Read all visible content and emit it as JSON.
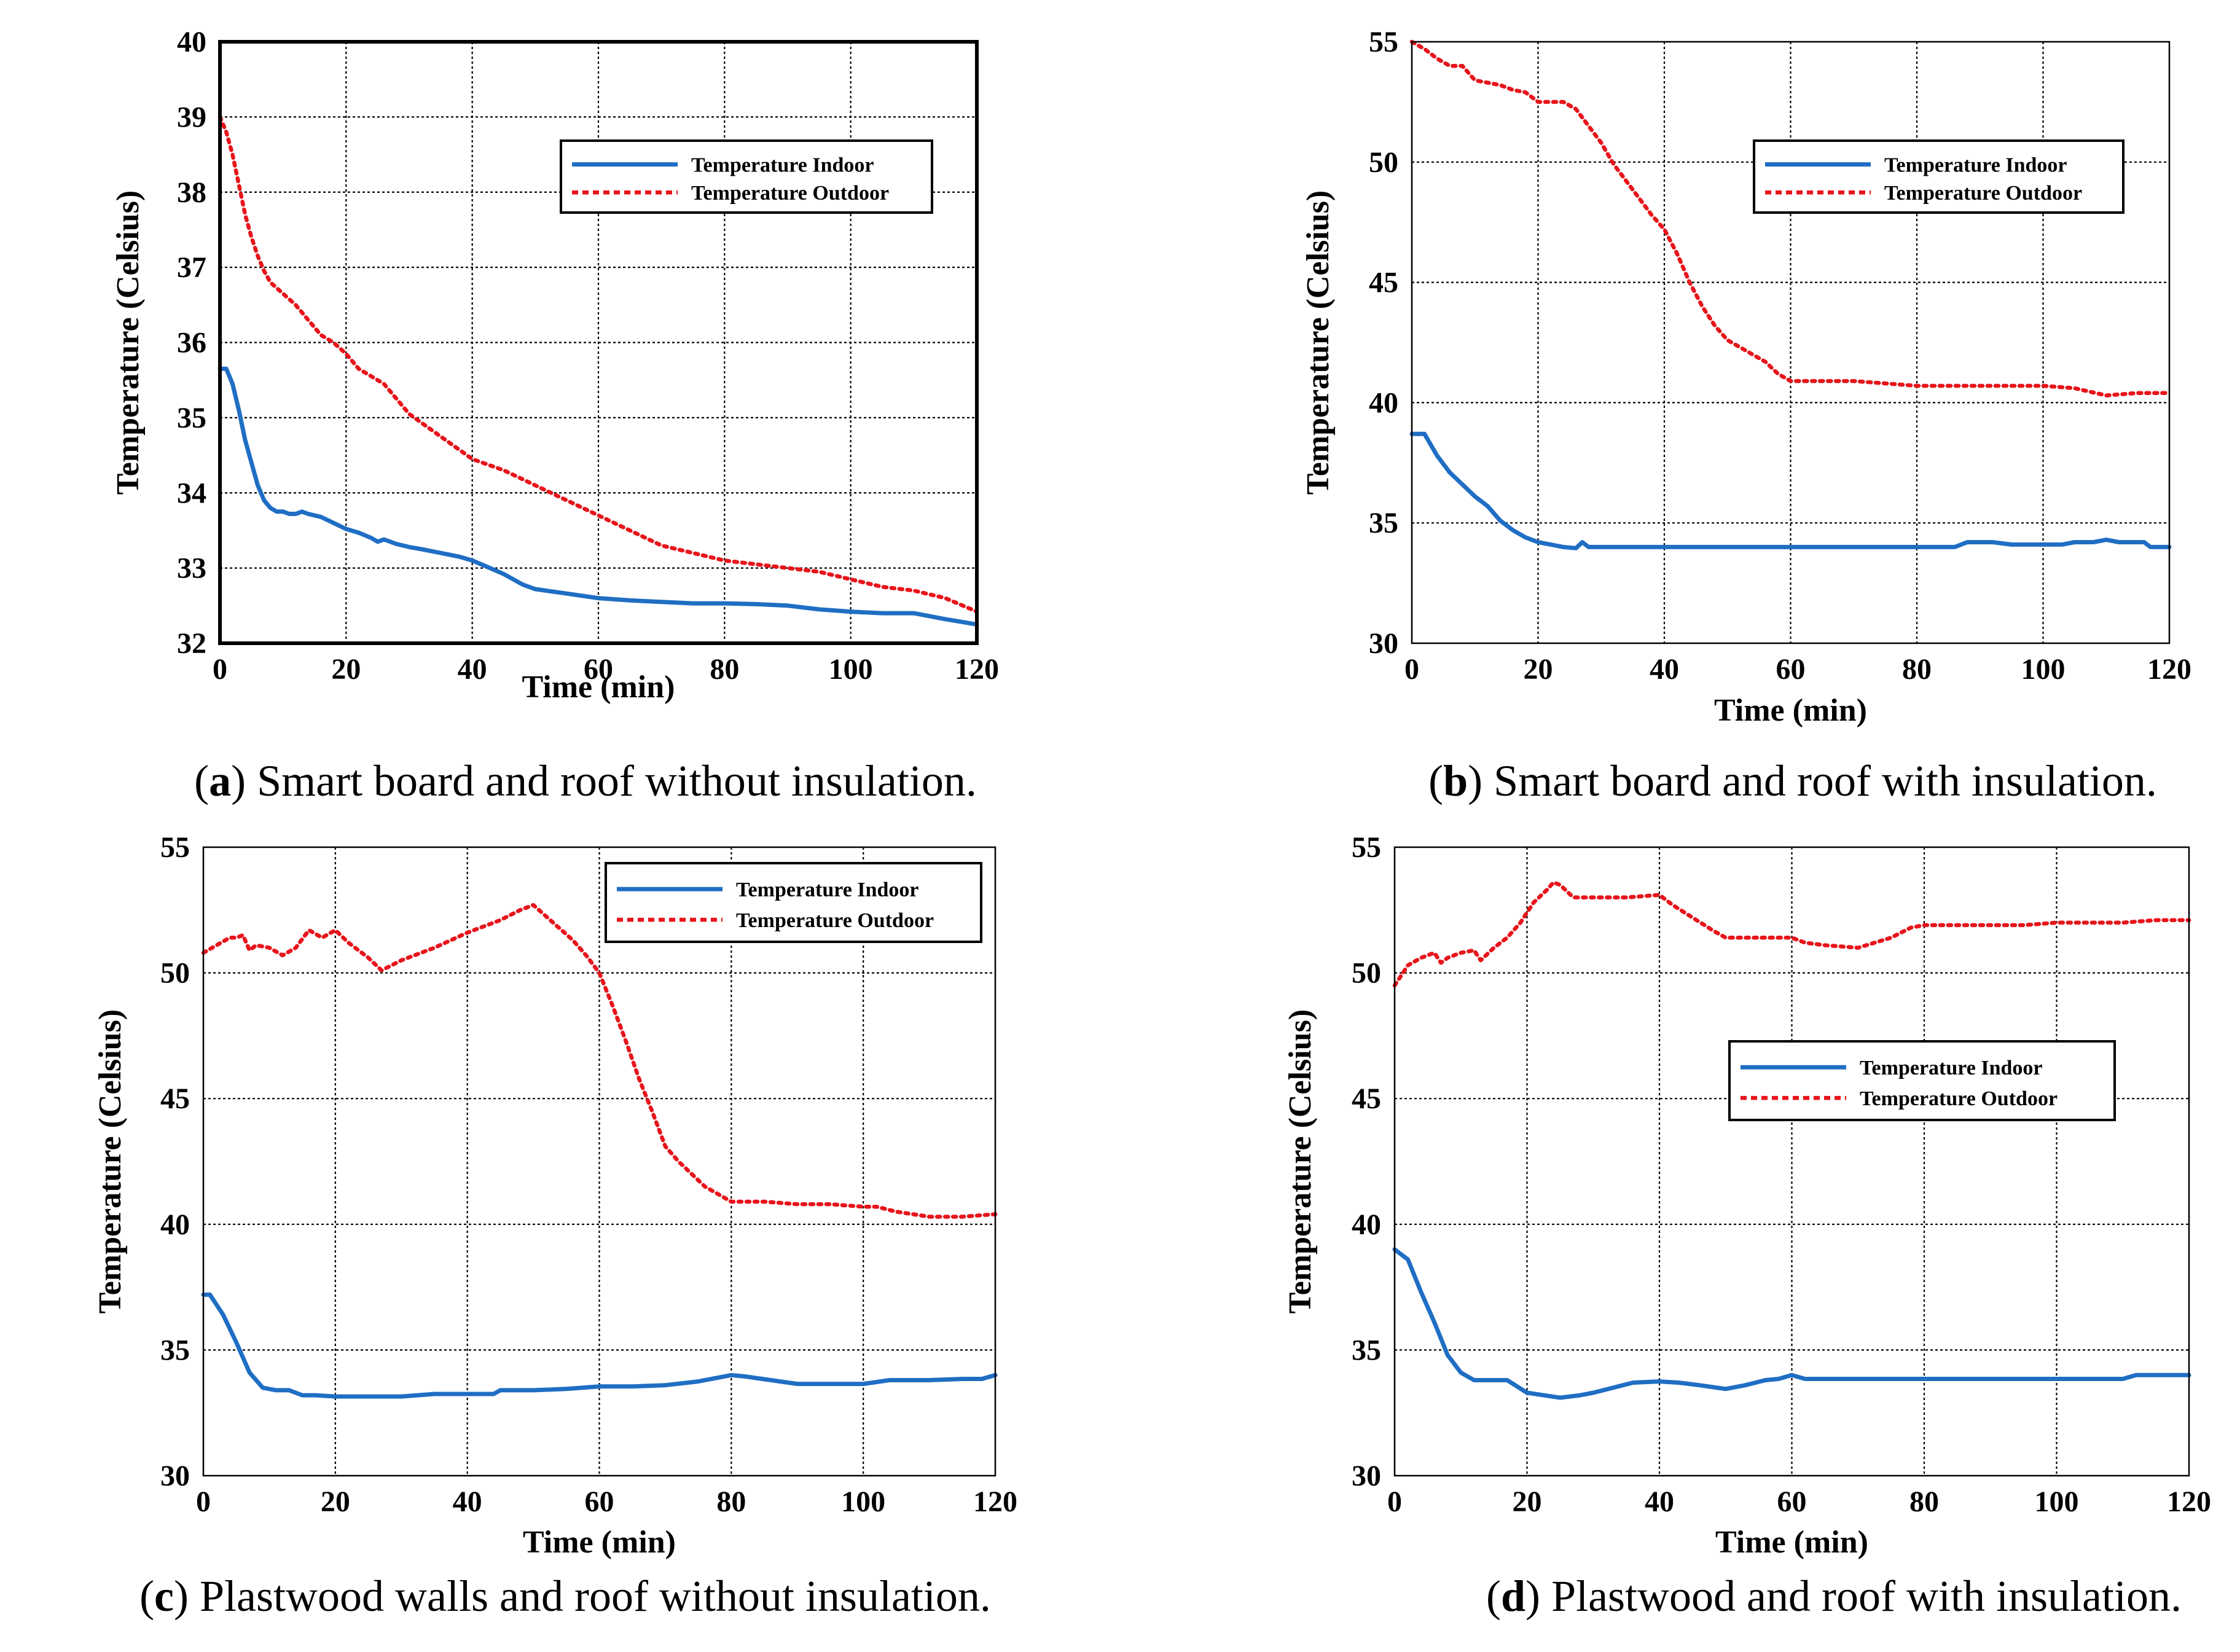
{
  "colors": {
    "indoor": "#1f6ec4",
    "outdoor": "#e8141b",
    "grid": "#000000"
  },
  "panels": [
    {
      "caption": {
        "letter": "a",
        "text": "Smart board and roof without insulation."
      },
      "legend": {
        "indoor": "Temperature Indoor",
        "outdoor": "Temperature Outdoor"
      },
      "chart_data": {
        "type": "line",
        "xlabel": "Time (min)",
        "ylabel": "Temperature (Celsius)",
        "xlim": [
          0,
          120
        ],
        "ylim": [
          32,
          40
        ],
        "xticks": [
          0,
          20,
          40,
          60,
          80,
          100,
          120
        ],
        "yticks": [
          32,
          33,
          34,
          35,
          36,
          37,
          38,
          39,
          40
        ],
        "legend_position": "top-right",
        "grid": true,
        "series": [
          {
            "name": "Temperature Indoor",
            "style": "solid",
            "x": [
              0,
              1,
              2,
              3,
              4,
              5,
              6,
              7,
              8,
              9,
              10,
              11,
              12,
              13,
              14,
              16,
              18,
              20,
              22,
              24,
              25,
              26,
              28,
              30,
              32,
              35,
              38,
              40,
              42,
              45,
              48,
              50,
              55,
              60,
              65,
              70,
              75,
              80,
              85,
              90,
              95,
              100,
              105,
              110,
              115,
              120
            ],
            "y": [
              35.65,
              35.65,
              35.45,
              35.1,
              34.7,
              34.4,
              34.1,
              33.9,
              33.8,
              33.75,
              33.75,
              33.72,
              33.72,
              33.75,
              33.72,
              33.68,
              33.6,
              33.52,
              33.47,
              33.4,
              33.35,
              33.38,
              33.32,
              33.28,
              33.25,
              33.2,
              33.15,
              33.1,
              33.03,
              32.92,
              32.78,
              32.72,
              32.66,
              32.6,
              32.57,
              32.55,
              32.53,
              32.53,
              32.52,
              32.5,
              32.45,
              32.42,
              32.4,
              32.4,
              32.32,
              32.25
            ]
          },
          {
            "name": "Temperature Outdoor",
            "style": "dotted",
            "x": [
              0,
              1,
              2,
              3,
              4,
              5,
              6,
              7,
              8,
              10,
              12,
              14,
              16,
              18,
              20,
              22,
              24,
              26,
              28,
              30,
              35,
              40,
              45,
              50,
              55,
              60,
              65,
              70,
              75,
              80,
              85,
              90,
              95,
              100,
              105,
              110,
              115,
              120
            ],
            "y": [
              39.0,
              38.8,
              38.5,
              38.1,
              37.7,
              37.4,
              37.15,
              36.95,
              36.8,
              36.65,
              36.5,
              36.3,
              36.1,
              36.0,
              35.85,
              35.65,
              35.55,
              35.45,
              35.25,
              35.05,
              34.75,
              34.45,
              34.3,
              34.1,
              33.9,
              33.7,
              33.5,
              33.3,
              33.2,
              33.1,
              33.05,
              33.0,
              32.95,
              32.85,
              32.75,
              32.7,
              32.6,
              32.42
            ]
          }
        ]
      }
    },
    {
      "caption": {
        "letter": "b",
        "text": "Smart board and roof with insulation."
      },
      "legend": {
        "indoor": "Temperature Indoor",
        "outdoor": "Temperature Outdoor"
      },
      "chart_data": {
        "type": "line",
        "xlabel": "Time (min)",
        "ylabel": "Temperature (Celsius)",
        "xlim": [
          0,
          120
        ],
        "ylim": [
          30,
          55
        ],
        "xticks": [
          0,
          20,
          40,
          60,
          80,
          100,
          120
        ],
        "yticks": [
          30,
          35,
          40,
          45,
          50,
          55
        ],
        "legend_position": "top-right",
        "grid": true,
        "series": [
          {
            "name": "Temperature Indoor",
            "style": "solid",
            "x": [
              0,
              2,
              4,
              6,
              8,
              10,
              12,
              14,
              16,
              18,
              20,
              22,
              24,
              26,
              27,
              28,
              30,
              40,
              50,
              60,
              70,
              80,
              86,
              88,
              92,
              95,
              100,
              103,
              105,
              108,
              110,
              112,
              116,
              117,
              118,
              120
            ],
            "y": [
              38.7,
              38.7,
              37.8,
              37.1,
              36.6,
              36.1,
              35.7,
              35.1,
              34.7,
              34.4,
              34.2,
              34.1,
              34.0,
              33.95,
              34.2,
              34.0,
              34.0,
              34.0,
              34.0,
              34.0,
              34.0,
              34.0,
              34.0,
              34.2,
              34.2,
              34.1,
              34.1,
              34.1,
              34.2,
              34.2,
              34.3,
              34.2,
              34.2,
              34.0,
              34.0,
              34.0
            ]
          },
          {
            "name": "Temperature Outdoor",
            "style": "dotted",
            "x": [
              0,
              2,
              4,
              6,
              8,
              10,
              12,
              14,
              16,
              18,
              20,
              22,
              24,
              26,
              28,
              30,
              32,
              34,
              36,
              38,
              40,
              42,
              44,
              46,
              48,
              50,
              52,
              54,
              56,
              58,
              60,
              65,
              70,
              75,
              80,
              85,
              90,
              95,
              100,
              105,
              110,
              115,
              120
            ],
            "y": [
              55.0,
              54.7,
              54.3,
              54.0,
              54.0,
              53.4,
              53.3,
              53.2,
              53.0,
              52.9,
              52.5,
              52.5,
              52.5,
              52.2,
              51.5,
              50.8,
              49.9,
              49.2,
              48.5,
              47.8,
              47.2,
              46.2,
              45.0,
              44.0,
              43.2,
              42.6,
              42.3,
              42.0,
              41.7,
              41.2,
              40.9,
              40.9,
              40.9,
              40.8,
              40.7,
              40.7,
              40.7,
              40.7,
              40.7,
              40.6,
              40.3,
              40.4,
              40.4
            ]
          }
        ]
      }
    },
    {
      "caption": {
        "letter": "c",
        "text": "Plastwood walls and roof without insulation."
      },
      "legend": {
        "indoor": "Temperature Indoor",
        "outdoor": "Temperature Outdoor"
      },
      "chart_data": {
        "type": "line",
        "xlabel": "Time (min)",
        "ylabel": "Temperature (Celsius)",
        "xlim": [
          0,
          120
        ],
        "ylim": [
          30,
          55
        ],
        "xticks": [
          0,
          20,
          40,
          60,
          80,
          100,
          120
        ],
        "yticks": [
          30,
          35,
          40,
          45,
          50,
          55
        ],
        "legend_position": "top-right",
        "grid": true,
        "series": [
          {
            "name": "Temperature Indoor",
            "style": "solid",
            "x": [
              0,
              1,
              3,
              5,
              7,
              9,
              11,
              13,
              15,
              17,
              20,
              25,
              30,
              35,
              40,
              44,
              45,
              50,
              55,
              60,
              65,
              70,
              75,
              78,
              80,
              82,
              86,
              90,
              95,
              100,
              104,
              110,
              115,
              118,
              120
            ],
            "y": [
              37.2,
              37.2,
              36.4,
              35.3,
              34.1,
              33.5,
              33.4,
              33.4,
              33.2,
              33.2,
              33.15,
              33.15,
              33.15,
              33.25,
              33.25,
              33.25,
              33.4,
              33.4,
              33.45,
              33.55,
              33.55,
              33.6,
              33.75,
              33.9,
              34.0,
              33.95,
              33.8,
              33.65,
              33.65,
              33.65,
              33.8,
              33.8,
              33.85,
              33.85,
              34.0
            ]
          },
          {
            "name": "Temperature Outdoor",
            "style": "dotted",
            "x": [
              0,
              2,
              4,
              5,
              6,
              7,
              8,
              10,
              12,
              14,
              16,
              18,
              20,
              22,
              25,
              27,
              30,
              35,
              40,
              45,
              48,
              50,
              53,
              56,
              58,
              60,
              62,
              64,
              66,
              68,
              70,
              72,
              74,
              76,
              78,
              80,
              85,
              90,
              95,
              100,
              102,
              105,
              110,
              115,
              120
            ],
            "y": [
              50.8,
              51.1,
              51.4,
              51.4,
              51.5,
              50.9,
              51.1,
              51.0,
              50.7,
              51.0,
              51.7,
              51.4,
              51.7,
              51.2,
              50.6,
              50.1,
              50.5,
              51.0,
              51.6,
              52.1,
              52.5,
              52.7,
              52.0,
              51.3,
              50.7,
              50.0,
              48.7,
              47.3,
              45.8,
              44.5,
              43.1,
              42.5,
              42.0,
              41.5,
              41.2,
              40.9,
              40.9,
              40.8,
              40.8,
              40.7,
              40.7,
              40.5,
              40.3,
              40.3,
              40.4
            ]
          }
        ]
      }
    },
    {
      "caption": {
        "letter": "d",
        "text": "Plastwood and roof with insulation."
      },
      "legend": {
        "indoor": "Temperature Indoor",
        "outdoor": "Temperature Outdoor"
      },
      "chart_data": {
        "type": "line",
        "xlabel": "Time (min)",
        "ylabel": "Temperature (Celsius)",
        "xlim": [
          0,
          120
        ],
        "ylim": [
          30,
          55
        ],
        "xticks": [
          0,
          20,
          40,
          60,
          80,
          100,
          120
        ],
        "yticks": [
          30,
          35,
          40,
          45,
          50,
          55
        ],
        "legend_position": "center-right",
        "grid": true,
        "series": [
          {
            "name": "Temperature Indoor",
            "style": "solid",
            "x": [
              0,
              2,
              4,
              6,
              8,
              10,
              12,
              14,
              17,
              20,
              25,
              28,
              30,
              33,
              36,
              40,
              43,
              46,
              50,
              53,
              56,
              58,
              60,
              62,
              65,
              70,
              80,
              90,
              100,
              110,
              112,
              115,
              120
            ],
            "y": [
              39.0,
              38.6,
              37.3,
              36.1,
              34.8,
              34.1,
              33.8,
              33.8,
              33.8,
              33.3,
              33.1,
              33.2,
              33.3,
              33.5,
              33.7,
              33.75,
              33.7,
              33.6,
              33.45,
              33.6,
              33.8,
              33.85,
              34.0,
              33.85,
              33.85,
              33.85,
              33.85,
              33.85,
              33.85,
              33.85,
              34.0,
              34.0,
              34.0
            ]
          },
          {
            "name": "Temperature Outdoor",
            "style": "dotted",
            "x": [
              0,
              2,
              4,
              6,
              7,
              8,
              10,
              12,
              13,
              15,
              17,
              19,
              21,
              23,
              24,
              25,
              27,
              30,
              35,
              40,
              42,
              45,
              48,
              50,
              55,
              60,
              62,
              65,
              70,
              75,
              78,
              80,
              85,
              90,
              95,
              100,
              105,
              110,
              115,
              120
            ],
            "y": [
              49.5,
              50.3,
              50.6,
              50.8,
              50.4,
              50.6,
              50.8,
              50.9,
              50.5,
              51.0,
              51.4,
              52.0,
              52.8,
              53.3,
              53.6,
              53.5,
              53.0,
              53.0,
              53.0,
              53.1,
              52.7,
              52.2,
              51.7,
              51.4,
              51.4,
              51.4,
              51.2,
              51.1,
              51.0,
              51.4,
              51.8,
              51.9,
              51.9,
              51.9,
              51.9,
              52.0,
              52.0,
              52.0,
              52.1,
              52.1
            ]
          }
        ]
      }
    }
  ]
}
